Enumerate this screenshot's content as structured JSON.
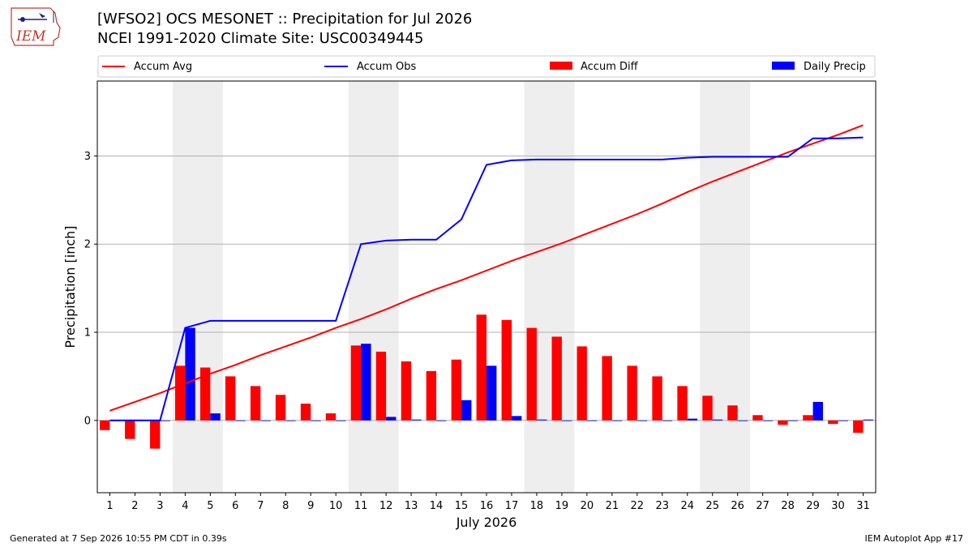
{
  "header": {
    "title_line1": "[WFSO2] OCS MESONET :: Precipitation for Jul 2026",
    "title_line2": "NCEI 1991-2020 Climate Site: USC00349445",
    "logo_text": "IEM"
  },
  "footer": {
    "left": "Generated at 7 Sep 2026 10:55 PM CDT in 0.39s",
    "right": "IEM Autoplot App #17"
  },
  "colors": {
    "avg": "#ff0000",
    "obs": "#0000ff",
    "diff": "#ff0000",
    "daily": "#0000ff",
    "weekend_shade": "#eeeeee",
    "grid": "#b0b0b0"
  },
  "chart_data": {
    "type": "bar",
    "xlabel": "July 2026",
    "ylabel": "Precipitation [inch]",
    "x": [
      1,
      2,
      3,
      4,
      5,
      6,
      7,
      8,
      9,
      10,
      11,
      12,
      13,
      14,
      15,
      16,
      17,
      18,
      19,
      20,
      21,
      22,
      23,
      24,
      25,
      26,
      27,
      28,
      29,
      30,
      31
    ],
    "ylim": [
      -0.82,
      3.85
    ],
    "yticks": [
      0,
      1,
      2,
      3
    ],
    "grid": "horizontal",
    "legend_position": "top",
    "shaded_days": [
      [
        4,
        5
      ],
      [
        11,
        12
      ],
      [
        18,
        19
      ],
      [
        25,
        26
      ]
    ],
    "series": [
      {
        "name": "Accum Avg",
        "kind": "line",
        "color": "#ff0000",
        "values": [
          0.11,
          0.21,
          0.31,
          0.42,
          0.53,
          0.63,
          0.74,
          0.84,
          0.94,
          1.05,
          1.15,
          1.26,
          1.38,
          1.49,
          1.59,
          1.7,
          1.81,
          1.91,
          2.01,
          2.12,
          2.23,
          2.34,
          2.46,
          2.59,
          2.71,
          2.82,
          2.93,
          3.04,
          3.14,
          3.24,
          3.35
        ]
      },
      {
        "name": "Accum Obs",
        "kind": "line",
        "color": "#0000ff",
        "values": [
          0.0,
          0.0,
          0.0,
          1.05,
          1.13,
          1.13,
          1.13,
          1.13,
          1.13,
          1.13,
          2.0,
          2.04,
          2.05,
          2.05,
          2.28,
          2.9,
          2.95,
          2.96,
          2.96,
          2.96,
          2.96,
          2.96,
          2.96,
          2.98,
          2.99,
          2.99,
          2.99,
          2.99,
          3.2,
          3.2,
          3.21
        ]
      },
      {
        "name": "Accum Diff",
        "kind": "bar",
        "color": "#ff0000",
        "values": [
          -0.11,
          -0.21,
          -0.32,
          0.62,
          0.6,
          0.5,
          0.39,
          0.29,
          0.19,
          0.08,
          0.85,
          0.78,
          0.67,
          0.56,
          0.69,
          1.2,
          1.14,
          1.05,
          0.95,
          0.84,
          0.73,
          0.62,
          0.5,
          0.39,
          0.28,
          0.17,
          0.06,
          -0.05,
          0.06,
          -0.04,
          -0.14
        ]
      },
      {
        "name": "Daily Precip",
        "kind": "bar",
        "color": "#0000ff",
        "values": [
          0.0,
          0.0,
          0.0,
          1.05,
          0.08,
          0.0,
          0.0,
          0.0,
          0.0,
          0.0,
          0.87,
          0.04,
          0.01,
          0.0,
          0.23,
          0.62,
          0.05,
          0.01,
          0.0,
          0.0,
          0.0,
          0.0,
          0.0,
          0.02,
          0.01,
          0.0,
          0.0,
          0.0,
          0.21,
          0.0,
          0.01
        ]
      }
    ]
  }
}
